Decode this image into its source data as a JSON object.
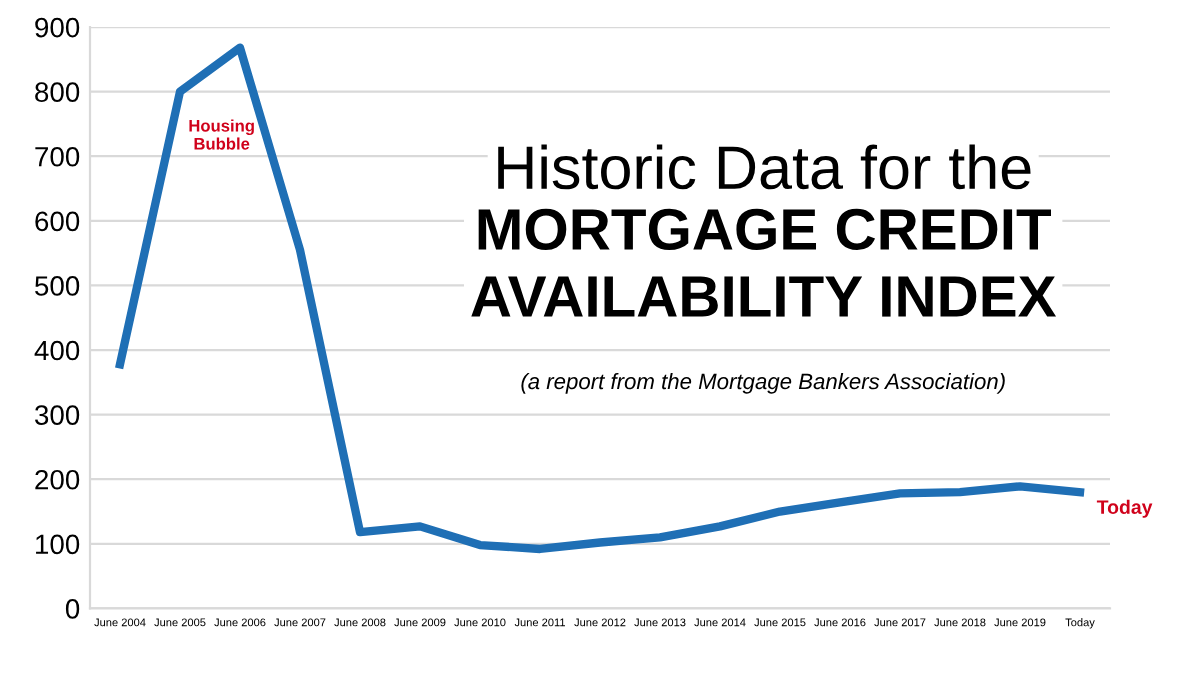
{
  "chart_data": {
    "type": "line",
    "title": "Historic Data for the",
    "subtitle": "MORTGAGE CREDIT\nAVAILABILITY INDEX",
    "categories": [
      "June 2004",
      "June 2005",
      "June 2006",
      "June 2007",
      "June 2008",
      "June 2009",
      "June 2010",
      "June 2011",
      "June 2012",
      "June 2013",
      "June 2014",
      "June 2015",
      "June 2016",
      "June 2017",
      "June 2018",
      "June 2019",
      "Today"
    ],
    "series": [
      {
        "color": "#1f6fb5",
        "values": [
          378,
          800,
          868,
          555,
          118,
          127,
          98,
          92,
          102,
          110,
          127,
          150,
          164,
          178,
          180,
          189,
          180
        ]
      }
    ],
    "ylim": [
      0,
      900
    ],
    "yticks": [
      0,
      100,
      200,
      300,
      400,
      500,
      600,
      700,
      800,
      900
    ],
    "grid": "y",
    "legend": false,
    "marker": "none",
    "line_style": "solid",
    "annotations": [
      "(a report from the Mortgage Bankers Association)",
      {
        "text": "Housing\nBubble",
        "x": "June 2005",
        "y": 800
      },
      {
        "text": "Today",
        "x": "Today",
        "y": 180
      }
    ]
  }
}
